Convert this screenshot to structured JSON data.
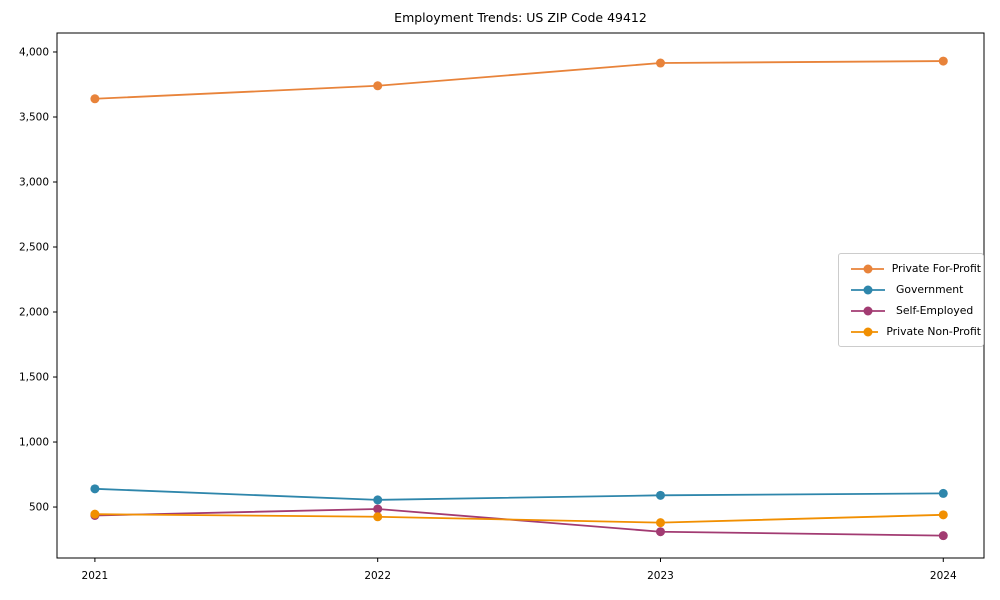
{
  "title": "Employment Trends: US ZIP Code 49412",
  "chart_data": {
    "type": "line",
    "title": "Employment Trends: US ZIP Code 49412",
    "x": [
      2021,
      2022,
      2023,
      2024
    ],
    "xticklabels": [
      "2021",
      "2022",
      "2023",
      "2024"
    ],
    "yticks": [
      500,
      1000,
      1500,
      2000,
      2500,
      3000,
      3500,
      4000
    ],
    "yticklabels": [
      "500",
      "1,000",
      "1,500",
      "2,000",
      "2,500",
      "3,000",
      "3,500",
      "4,000"
    ],
    "series": [
      {
        "name": "Private For-Profit",
        "color": "#E8833A",
        "values": [
          3640,
          3740,
          3915,
          3930
        ]
      },
      {
        "name": "Government",
        "color": "#2E86AB",
        "values": [
          640,
          555,
          590,
          605
        ]
      },
      {
        "name": "Self-Employed",
        "color": "#A23B72",
        "values": [
          435,
          485,
          310,
          280
        ]
      },
      {
        "name": "Private Non-Profit",
        "color": "#F18F01",
        "values": [
          445,
          425,
          380,
          440
        ]
      }
    ],
    "xlabel": "",
    "ylabel": "",
    "xlim": [
      2020.866,
      2024.144
    ],
    "ylim": [
      108,
      4146
    ],
    "grid": false,
    "legend_position": "center-right",
    "axis_color": "#000000"
  }
}
